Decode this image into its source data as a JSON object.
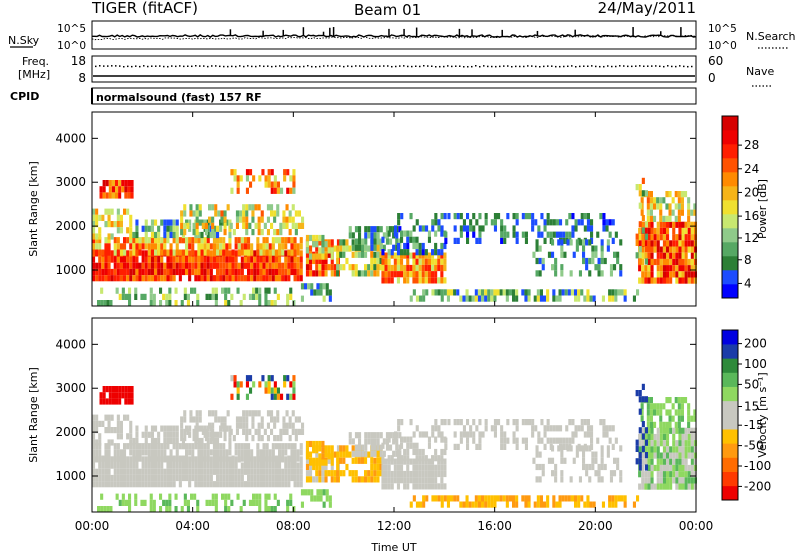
{
  "header": {
    "radar": "TIGER (fitACF)",
    "beam": "Beam 01",
    "date": "24/May/2011"
  },
  "noise_panel": {
    "left_label": "N.Sky",
    "left_ticks": [
      "10^5",
      "10^0"
    ],
    "right_ticks": [
      "10^5",
      "10^0"
    ],
    "right_label": "N.Search"
  },
  "freq_panel": {
    "left_label_1": "Freq.",
    "left_label_2": "[MHz]",
    "left_ticks": [
      "18",
      "8"
    ],
    "right_ticks": [
      "60",
      "0"
    ],
    "right_label": "Nave"
  },
  "cpid_panel": {
    "label": "CPID",
    "text": "normalsound (fast) 157 RF"
  },
  "time_axis": {
    "title": "Time UT",
    "ticks": [
      "00:00",
      "04:00",
      "08:00",
      "12:00",
      "16:00",
      "20:00",
      "00:00"
    ]
  },
  "chart_data": [
    {
      "type": "heatmap",
      "title": "",
      "xlabel": "",
      "ylabel": "Slant Range [km]",
      "x_range_hours": [
        0,
        24
      ],
      "ylim": [
        180,
        4600
      ],
      "yticks": [
        "4000",
        "3000",
        "2000",
        "1000"
      ],
      "ytick_values": [
        4000,
        3000,
        2000,
        1000
      ],
      "colorbar": {
        "label": "Power [dB]",
        "tick_labels": [
          "28",
          "24",
          "20",
          "16",
          "12",
          "8",
          "4"
        ],
        "colors": [
          "#0000ff",
          "#1c4cff",
          "#2c7f36",
          "#56a864",
          "#8fca8a",
          "#c8e870",
          "#f0e030",
          "#f6b418",
          "#ff8a00",
          "#ff5200",
          "#ff1e00",
          "#ee0000",
          "#d60000"
        ]
      }
    },
    {
      "type": "heatmap",
      "title": "",
      "xlabel": "Time UT",
      "ylabel": "Slant Range [km]",
      "x_range_hours": [
        0,
        24
      ],
      "ylim": [
        180,
        4600
      ],
      "yticks": [
        "4000",
        "3000",
        "2000",
        "1000"
      ],
      "ytick_values": [
        4000,
        3000,
        2000,
        1000
      ],
      "colorbar": {
        "label": "Velocity [m s⁻¹]",
        "tick_labels": [
          "200",
          "100",
          "50",
          "15",
          "-15",
          "-50",
          "-100",
          "-200"
        ],
        "colors": [
          "#ee0000",
          "#ff3a00",
          "#ff6c00",
          "#ff9a10",
          "#ffc000",
          "#c8c8c0",
          "#c8c8c0",
          "#8fd860",
          "#5ab85a",
          "#2e8a3a",
          "#1b3ca8",
          "#0000e0"
        ]
      }
    }
  ]
}
